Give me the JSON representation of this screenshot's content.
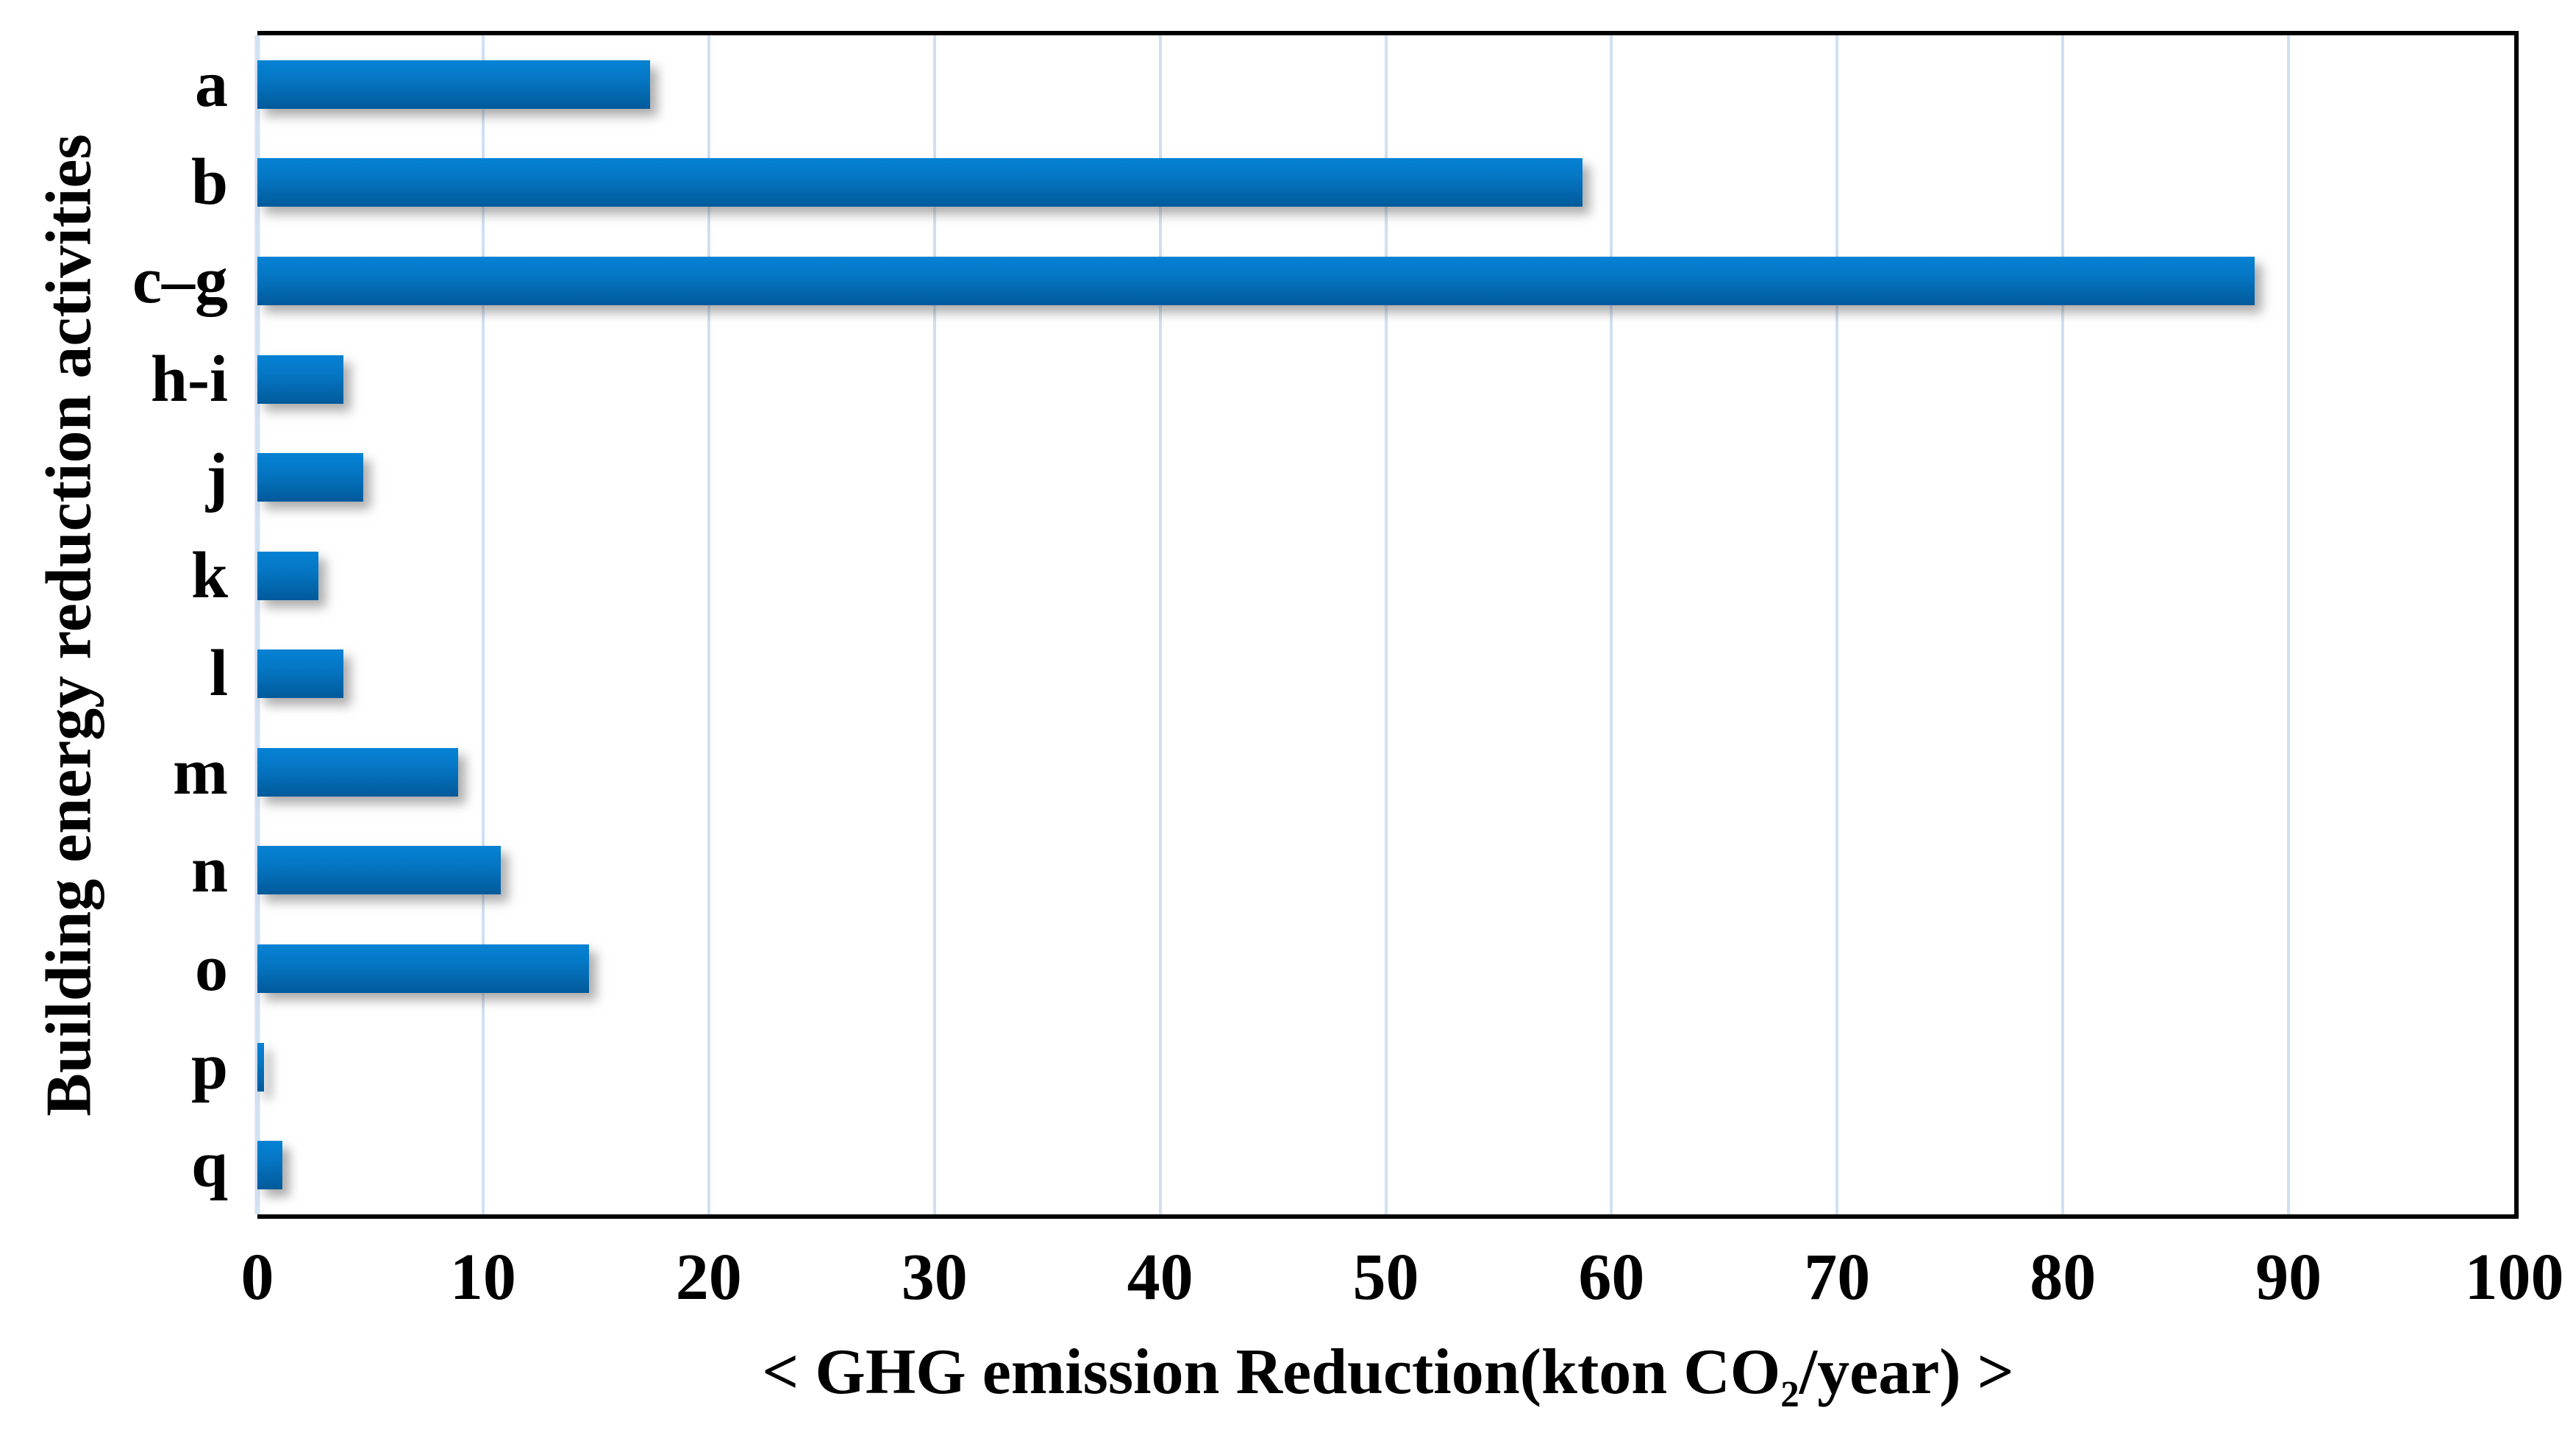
{
  "chart_data": {
    "type": "bar",
    "orientation": "horizontal",
    "title": "",
    "xlabel": "< GHG emission Reduction(kton CO2/year) >",
    "xlabel_parts": {
      "pre": "< GHG emission Reduction(kton CO",
      "sub": "2",
      "post": "/year) >"
    },
    "ylabel": "Building energy reduction activities",
    "categories": [
      "a",
      "b",
      "c–g",
      "h-i",
      "j",
      "k",
      "l",
      "m",
      "n",
      "o",
      "p",
      "q"
    ],
    "values": [
      17.4,
      58.7,
      88.5,
      3.8,
      4.7,
      2.7,
      3.8,
      8.9,
      10.8,
      14.7,
      0.3,
      1.1
    ],
    "xlim": [
      0,
      100
    ],
    "xticks": [
      0,
      10,
      20,
      30,
      40,
      50,
      60,
      70,
      80,
      90,
      100
    ],
    "grid": true,
    "legend": false,
    "colors": {
      "bar_gradient_top": "#0682d4",
      "bar_gradient_bottom": "#015a9a",
      "gridline": "#cfe0f3",
      "axis_frame": "#000000",
      "background": "#ffffff"
    }
  }
}
